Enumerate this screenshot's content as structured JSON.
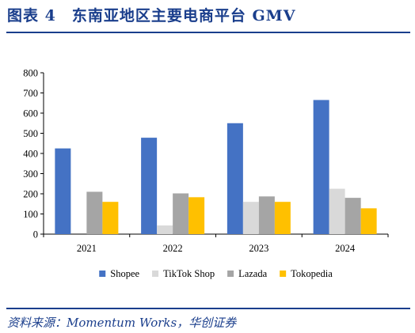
{
  "header": {
    "title": "图表 4　东南亚地区主要电商平台 GMV"
  },
  "footer": {
    "source": "资料来源：Momentum Works，华创证券"
  },
  "chart_data": {
    "type": "bar",
    "title": "",
    "xlabel": "",
    "ylabel": "",
    "ylim": [
      0,
      800
    ],
    "yticks": [
      0,
      100,
      200,
      300,
      400,
      500,
      600,
      700,
      800
    ],
    "grid": false,
    "legend_position": "bottom",
    "categories": [
      "2021",
      "2022",
      "2023",
      "2024"
    ],
    "series": [
      {
        "name": "Shopee",
        "color": "#4472c4",
        "values": [
          425,
          478,
          550,
          665
        ]
      },
      {
        "name": "TikTok Shop",
        "color": "#d9d9d9",
        "values": [
          0,
          43,
          160,
          225
        ]
      },
      {
        "name": "Lazada",
        "color": "#a5a5a5",
        "values": [
          210,
          202,
          187,
          180
        ]
      },
      {
        "name": "Tokopedia",
        "color": "#ffc000",
        "values": [
          160,
          183,
          160,
          128
        ]
      }
    ]
  }
}
